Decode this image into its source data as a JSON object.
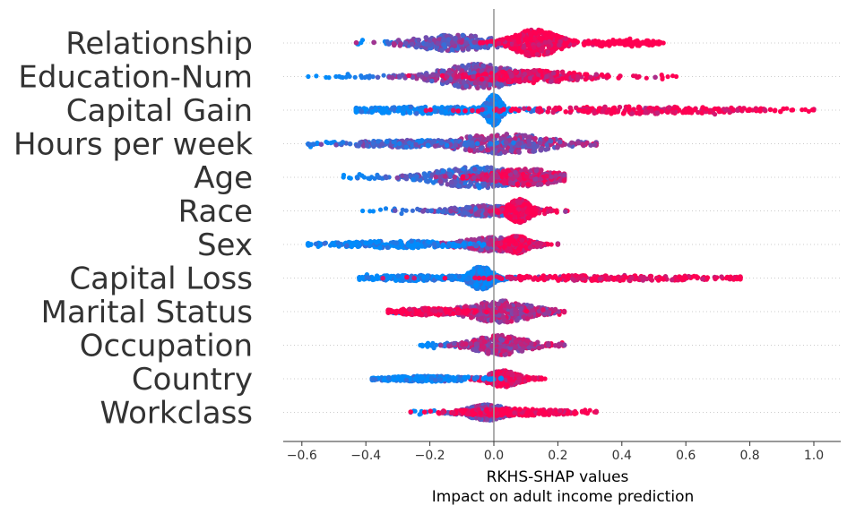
{
  "chart_data": {
    "type": "beeswarm",
    "title": "",
    "xlabel": "RKHS-SHAP values",
    "xlabel2": "Impact on adult income prediction",
    "xlim": [
      -0.66,
      1.1
    ],
    "xticks": [
      -0.6,
      -0.4,
      -0.2,
      0.0,
      0.2,
      0.4,
      0.6,
      0.8,
      1.0
    ],
    "xtick_labels": [
      "−0.6",
      "−0.4",
      "−0.2",
      "0.0",
      "0.2",
      "0.4",
      "0.6",
      "0.8",
      "1.0"
    ],
    "colors": {
      "low": "#008bfb",
      "high": "#ff0052",
      "zero_line": "#999999",
      "axis": "#333333",
      "row_guide": "#cccccc"
    },
    "features": [
      {
        "name": "Relationship",
        "min": -0.43,
        "max": 0.53,
        "clusters": [
          [
            -0.12,
            0.11,
            8,
            0.45
          ],
          [
            0.13,
            0.06,
            14,
            1.0
          ]
        ],
        "tail_high": [
          0.28,
          0.53
        ]
      },
      {
        "name": "Education-Num",
        "min": -0.58,
        "max": 0.57,
        "clusters": [
          [
            -0.05,
            0.1,
            13,
            0.5
          ],
          [
            0.12,
            0.12,
            6,
            0.9
          ]
        ]
      },
      {
        "name": "Capital Gain",
        "min": -0.43,
        "max": 1.0,
        "clusters": [
          [
            0.0,
            0.02,
            16,
            0.0
          ],
          [
            -0.2,
            0.18,
            3,
            0.0
          ],
          [
            0.45,
            0.25,
            3,
            1.0
          ]
        ]
      },
      {
        "name": "Hours per week",
        "min": -0.58,
        "max": 0.32,
        "clusters": [
          [
            0.03,
            0.13,
            10,
            0.55
          ],
          [
            -0.25,
            0.15,
            3,
            0.3
          ]
        ]
      },
      {
        "name": "Age",
        "min": -0.47,
        "max": 0.22,
        "clusters": [
          [
            -0.05,
            0.11,
            11,
            0.3
          ],
          [
            0.1,
            0.08,
            9,
            0.8
          ]
        ]
      },
      {
        "name": "Race",
        "min": -0.41,
        "max": 0.23,
        "clusters": [
          [
            -0.02,
            0.08,
            5,
            0.4
          ],
          [
            0.08,
            0.03,
            12,
            1.0
          ]
        ]
      },
      {
        "name": "Sex",
        "min": -0.58,
        "max": 0.2,
        "clusters": [
          [
            0.0,
            0.08,
            7,
            0.6
          ],
          [
            -0.3,
            0.14,
            3,
            0.0
          ],
          [
            0.07,
            0.03,
            9,
            0.95
          ]
        ]
      },
      {
        "name": "Capital Loss",
        "min": -0.42,
        "max": 0.77,
        "clusters": [
          [
            -0.04,
            0.03,
            12,
            0.0
          ],
          [
            -0.25,
            0.12,
            2,
            0.0
          ],
          [
            0.35,
            0.25,
            2,
            1.0
          ]
        ]
      },
      {
        "name": "Marital Status",
        "min": -0.33,
        "max": 0.22,
        "clusters": [
          [
            0.02,
            0.09,
            11,
            0.65
          ],
          [
            -0.2,
            0.08,
            3,
            1.0
          ]
        ]
      },
      {
        "name": "Occupation",
        "min": -0.23,
        "max": 0.22,
        "clusters": [
          [
            0.02,
            0.07,
            10,
            0.65
          ]
        ]
      },
      {
        "name": "Country",
        "min": -0.38,
        "max": 0.16,
        "clusters": [
          [
            0.03,
            0.04,
            8,
            0.9
          ],
          [
            -0.2,
            0.1,
            2,
            0.0
          ]
        ]
      },
      {
        "name": "Workclass",
        "min": -0.26,
        "max": 0.32,
        "clusters": [
          [
            -0.02,
            0.05,
            8,
            0.5
          ],
          [
            0.05,
            0.12,
            3,
            1.0
          ]
        ]
      }
    ]
  }
}
